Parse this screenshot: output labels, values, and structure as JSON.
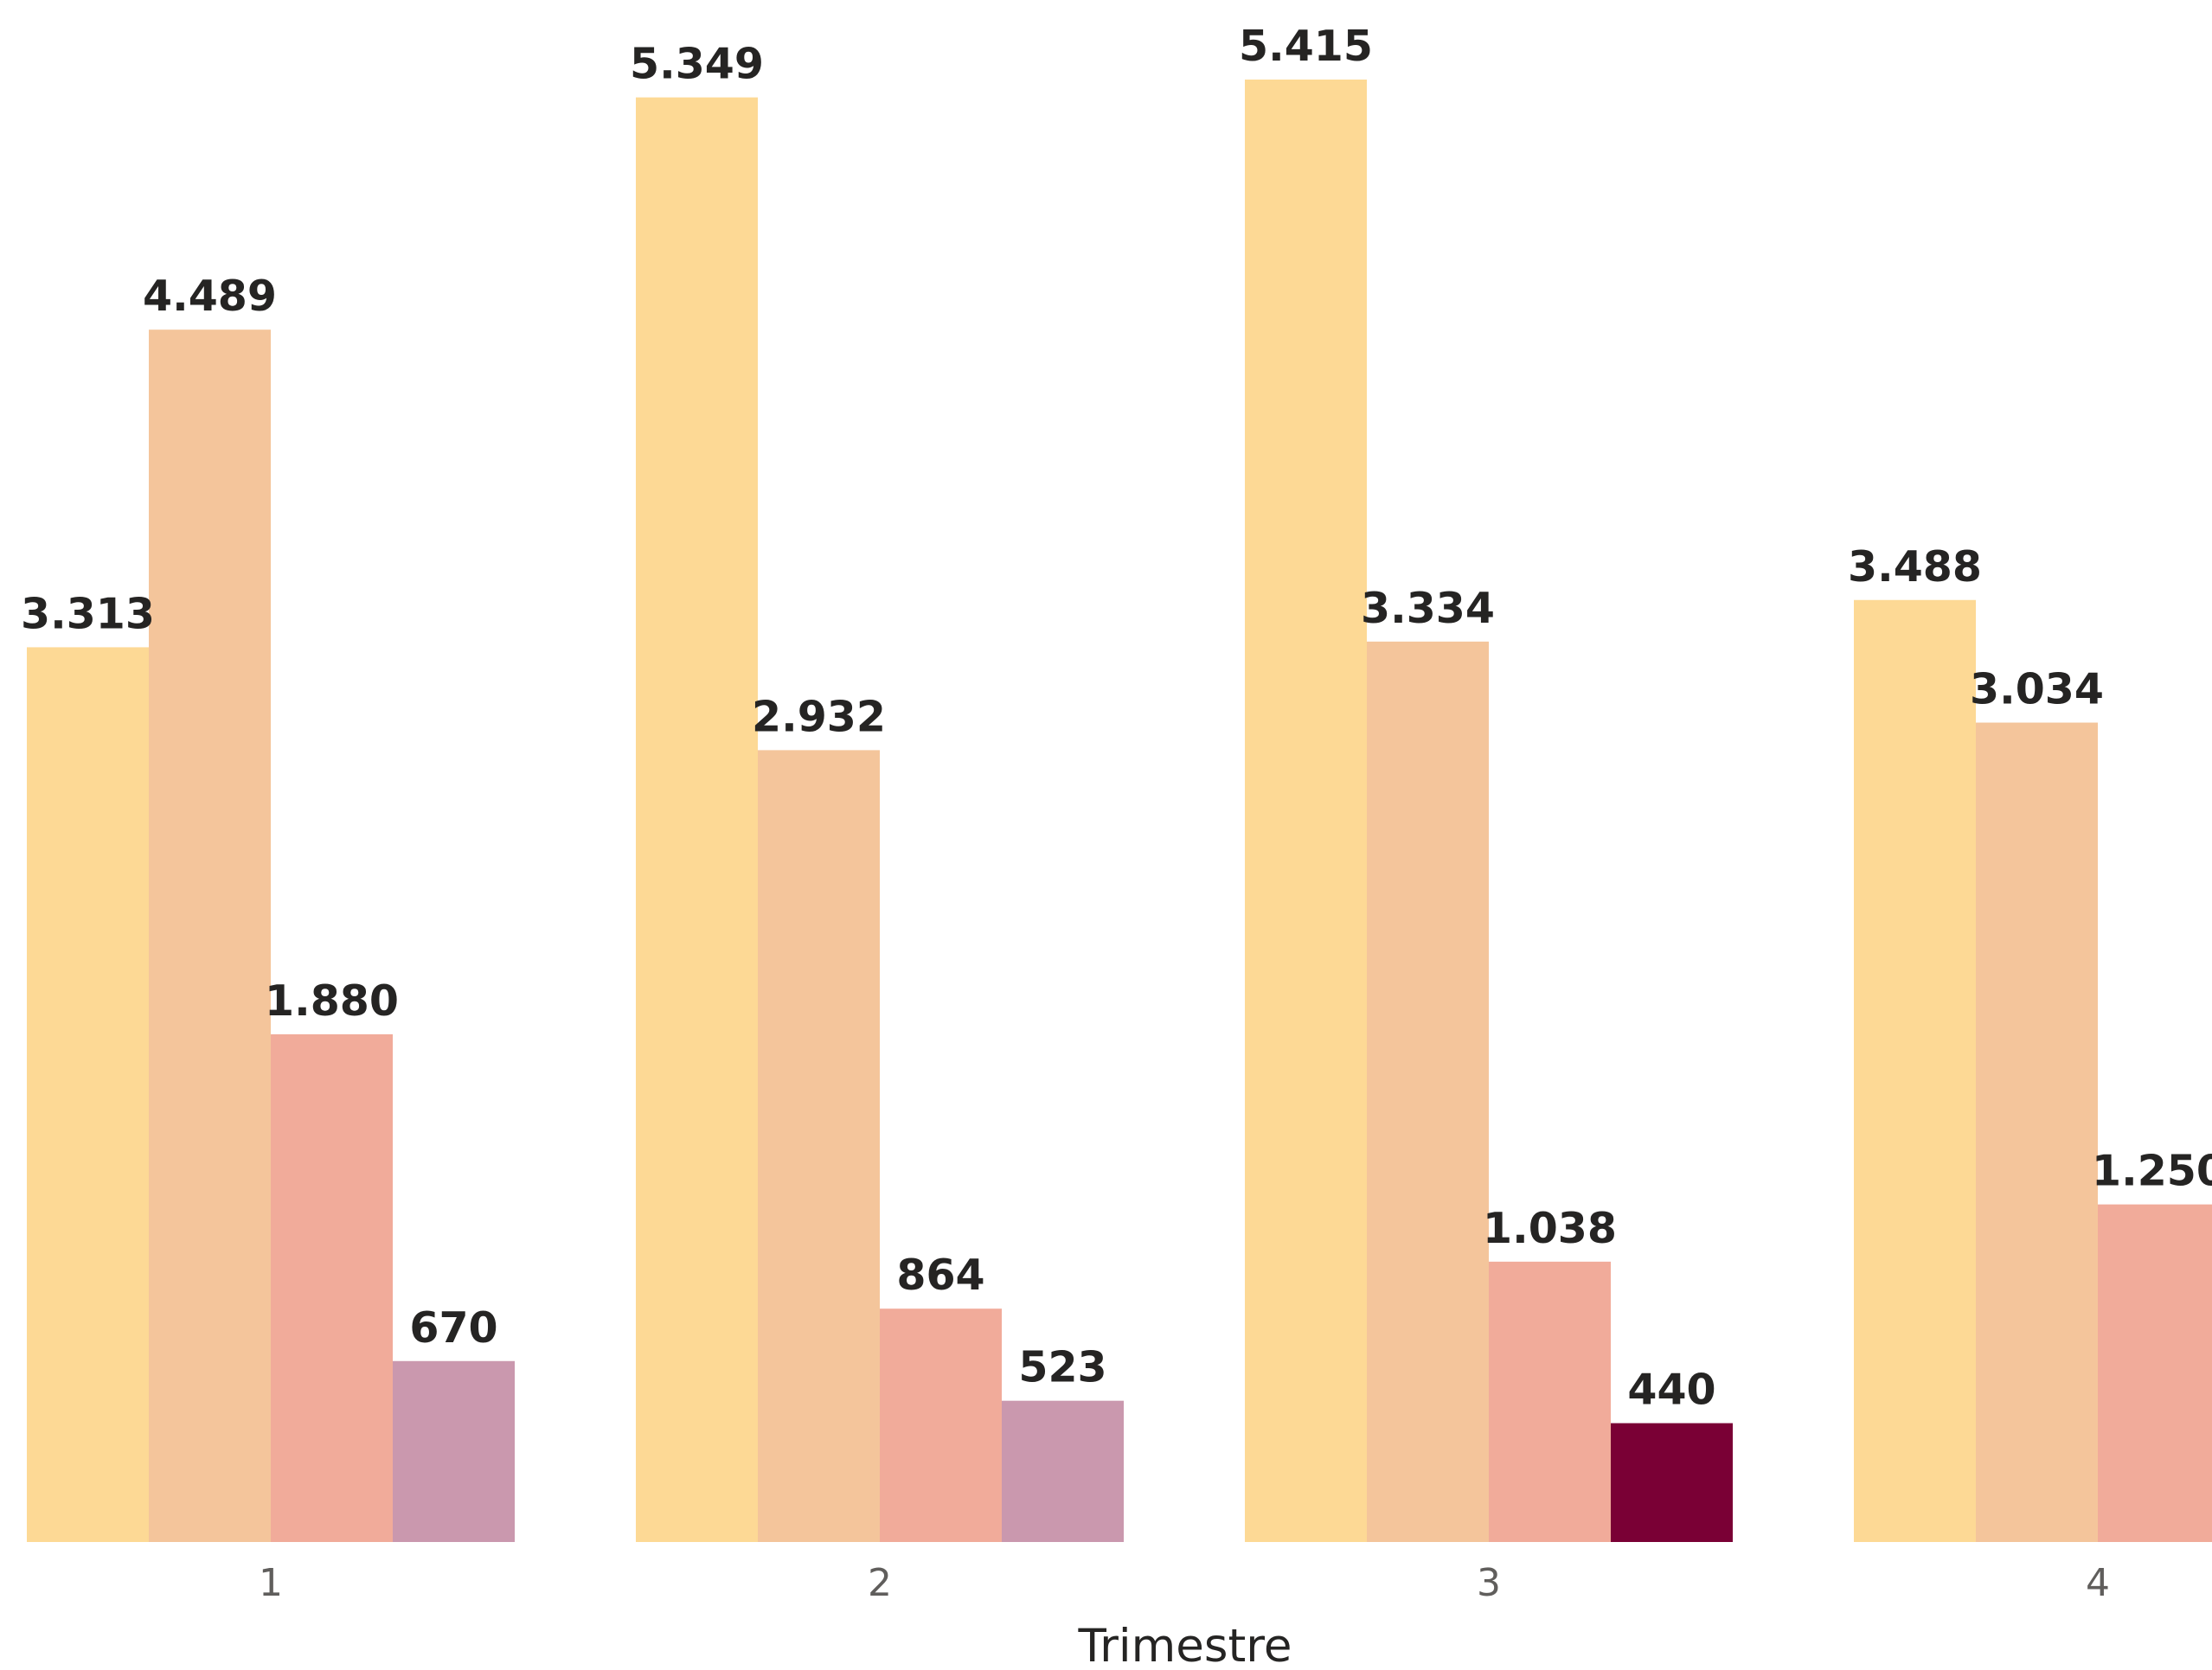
{
  "chart_data": {
    "type": "bar",
    "xlabel": "Trimestre",
    "ylabel": "",
    "ylim": [
      0,
      5500
    ],
    "grid": false,
    "categories": [
      "1",
      "2",
      "3",
      "4"
    ],
    "series": [
      {
        "color": "#FDD995",
        "values": [
          3313,
          5349,
          5415,
          3488
        ],
        "labels": [
          "3.313",
          "5.349",
          "5.415",
          "3.488"
        ]
      },
      {
        "color": "#F4C59B",
        "values": [
          4489,
          2932,
          3334,
          3034
        ],
        "labels": [
          "4.489",
          "2.932",
          "3.334",
          "3.034"
        ]
      },
      {
        "color": "#F1AB9A",
        "values": [
          1880,
          864,
          1038,
          1250
        ],
        "labels": [
          "1.880",
          "864",
          "1.038",
          "1.250"
        ]
      },
      {
        "values": [
          670,
          523,
          440,
          null
        ],
        "labels": [
          "670",
          "523",
          "440",
          ""
        ],
        "colors": [
          "#CA98AE",
          "#CA98AE",
          "#7A0035",
          ""
        ]
      }
    ]
  }
}
